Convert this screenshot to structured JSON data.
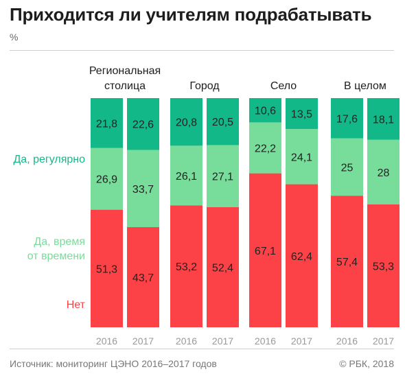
{
  "title": "Приходится ли учителям подрабатывать",
  "unit": "%",
  "source": "Источник: мониторинг ЦЭНО 2016–2017 годов",
  "copyright": "© РБК, 2018",
  "legend": [
    {
      "label": "Да, регулярно",
      "color": "#13b888"
    },
    {
      "label": "Да, время\nот времени",
      "color": "#78dc9a"
    },
    {
      "label": "Нет",
      "color": "#fc4246"
    }
  ],
  "chart_data": {
    "type": "bar",
    "stacked": true,
    "normalized": true,
    "unit": "%",
    "groups": [
      {
        "name": "Региональная\nстолица",
        "bars": [
          {
            "year": "2016",
            "values": [
              21.8,
              26.9,
              51.3
            ],
            "labels": [
              "21,8",
              "26,9",
              "51,3"
            ]
          },
          {
            "year": "2017",
            "values": [
              22.6,
              33.7,
              43.7
            ],
            "labels": [
              "22,6",
              "33,7",
              "43,7"
            ]
          }
        ]
      },
      {
        "name": "Город",
        "bars": [
          {
            "year": "2016",
            "values": [
              20.8,
              26.1,
              53.2
            ],
            "labels": [
              "20,8",
              "26,1",
              "53,2"
            ]
          },
          {
            "year": "2017",
            "values": [
              20.5,
              27.1,
              52.4
            ],
            "labels": [
              "20,5",
              "27,1",
              "52,4"
            ]
          }
        ]
      },
      {
        "name": "Село",
        "bars": [
          {
            "year": "2016",
            "values": [
              10.6,
              22.2,
              67.1
            ],
            "labels": [
              "10,6",
              "22,2",
              "67,1"
            ]
          },
          {
            "year": "2017",
            "values": [
              13.5,
              24.1,
              62.4
            ],
            "labels": [
              "13,5",
              "24,1",
              "62,4"
            ]
          }
        ]
      },
      {
        "name": "В целом",
        "bars": [
          {
            "year": "2016",
            "values": [
              17.6,
              25,
              57.4
            ],
            "labels": [
              "17,6",
              "25",
              "57,4"
            ]
          },
          {
            "year": "2017",
            "values": [
              18.1,
              28,
              53.3
            ],
            "labels": [
              "18,1",
              "28",
              "53,3"
            ]
          }
        ]
      }
    ],
    "series": [
      {
        "name": "Да, регулярно",
        "color": "#13b888"
      },
      {
        "name": "Да, время от времени",
        "color": "#78dc9a"
      },
      {
        "name": "Нет",
        "color": "#fc4246"
      }
    ]
  }
}
